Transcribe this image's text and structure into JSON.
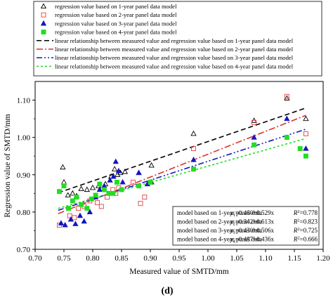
{
  "chart_data": {
    "type": "scatter",
    "xlabel": "Measured value of SMTD/mm",
    "ylabel": "Regression value of SMTD/mm",
    "xlim": [
      0.7,
      1.2
    ],
    "ylim": [
      0.7,
      1.15
    ],
    "xticks": [
      "0.70",
      "0.75",
      "0.80",
      "0.85",
      "0.90",
      "0.95",
      "1.00",
      "1.05",
      "1.10",
      "1.15",
      "1.20"
    ],
    "yticks": [
      "0.70",
      "0.80",
      "0.90",
      "1.00",
      "1.10"
    ],
    "grid": false,
    "legend_position": "top",
    "panel_label": "(d)",
    "series": [
      {
        "name": "regression value based on 1-year panel data model",
        "marker": "open-triangle",
        "color": "#000000",
        "points": [
          [
            0.748,
            0.92
          ],
          [
            0.75,
            0.88
          ],
          [
            0.757,
            0.845
          ],
          [
            0.765,
            0.85
          ],
          [
            0.772,
            0.843
          ],
          [
            0.78,
            0.862
          ],
          [
            0.79,
            0.86
          ],
          [
            0.8,
            0.865
          ],
          [
            0.81,
            0.87
          ],
          [
            0.822,
            0.875
          ],
          [
            0.832,
            0.895
          ],
          [
            0.838,
            0.915
          ],
          [
            0.843,
            0.9
          ],
          [
            0.848,
            0.905
          ],
          [
            0.856,
            0.908
          ],
          [
            0.88,
            0.905
          ],
          [
            0.902,
            0.925
          ],
          [
            0.975,
            1.01
          ],
          [
            1.08,
            1.045
          ],
          [
            1.137,
            1.105
          ],
          [
            1.17,
            1.05
          ]
        ]
      },
      {
        "name": "regression value based on 2-year panel data model",
        "marker": "open-square",
        "color": "#e04040",
        "points": [
          [
            0.742,
            0.765
          ],
          [
            0.76,
            0.79
          ],
          [
            0.768,
            0.785
          ],
          [
            0.775,
            0.81
          ],
          [
            0.785,
            0.815
          ],
          [
            0.795,
            0.83
          ],
          [
            0.808,
            0.825
          ],
          [
            0.815,
            0.815
          ],
          [
            0.825,
            0.84
          ],
          [
            0.835,
            0.86
          ],
          [
            0.84,
            0.85
          ],
          [
            0.845,
            0.865
          ],
          [
            0.87,
            0.88
          ],
          [
            0.883,
            0.823
          ],
          [
            0.89,
            0.84
          ],
          [
            0.9,
            0.88
          ],
          [
            0.975,
            0.97
          ],
          [
            1.08,
            1.04
          ],
          [
            1.137,
            1.11
          ],
          [
            1.17,
            1.01
          ]
        ]
      },
      {
        "name": "regression value based on 3-year panel data model",
        "marker": "filled-triangle",
        "color": "#1515c0",
        "points": [
          [
            0.745,
            0.77
          ],
          [
            0.752,
            0.765
          ],
          [
            0.762,
            0.78
          ],
          [
            0.77,
            0.768
          ],
          [
            0.778,
            0.79
          ],
          [
            0.785,
            0.775
          ],
          [
            0.795,
            0.8
          ],
          [
            0.805,
            0.84
          ],
          [
            0.812,
            0.86
          ],
          [
            0.82,
            0.87
          ],
          [
            0.83,
            0.885
          ],
          [
            0.836,
            0.895
          ],
          [
            0.84,
            0.935
          ],
          [
            0.845,
            0.91
          ],
          [
            0.852,
            0.88
          ],
          [
            0.88,
            0.905
          ],
          [
            0.895,
            0.875
          ],
          [
            0.902,
            0.88
          ],
          [
            0.975,
            0.94
          ],
          [
            1.08,
            1.0
          ],
          [
            1.137,
            1.05
          ],
          [
            1.17,
            0.97
          ]
        ]
      },
      {
        "name": "regression value based on 4-year panel data model",
        "marker": "filled-square",
        "color": "#22dd22",
        "points": [
          [
            0.742,
            0.855
          ],
          [
            0.75,
            0.87
          ],
          [
            0.758,
            0.81
          ],
          [
            0.765,
            0.83
          ],
          [
            0.772,
            0.84
          ],
          [
            0.78,
            0.82
          ],
          [
            0.79,
            0.81
          ],
          [
            0.798,
            0.835
          ],
          [
            0.805,
            0.845
          ],
          [
            0.812,
            0.875
          ],
          [
            0.82,
            0.86
          ],
          [
            0.828,
            0.85
          ],
          [
            0.835,
            0.85
          ],
          [
            0.842,
            0.88
          ],
          [
            0.85,
            0.86
          ],
          [
            0.88,
            0.87
          ],
          [
            0.9,
            0.88
          ],
          [
            0.975,
            0.915
          ],
          [
            1.08,
            0.98
          ],
          [
            1.137,
            1.0
          ],
          [
            1.16,
            0.97
          ],
          [
            1.17,
            0.95
          ]
        ]
      }
    ],
    "lines": [
      {
        "name": "linear relationship between measured value and regression value based on 1-year panel data model",
        "intercept": 0.46,
        "slope": 0.529,
        "x_range": [
          0.74,
          1.17
        ],
        "color": "#000000",
        "dash": "7,4"
      },
      {
        "name": "linear relationship between measured value and regression value based on 2-year panel data model",
        "intercept": 0.342,
        "slope": 0.613,
        "x_range": [
          0.74,
          1.17
        ],
        "color": "#e03030",
        "dash": "9,3,2,3"
      },
      {
        "name": "linear relationship between measured value and regression value based on 3-year panel data model",
        "intercept": 0.43,
        "slope": 0.506,
        "x_range": [
          0.74,
          1.17
        ],
        "color": "#1515c0",
        "dash": "8,3,2,3,2,3"
      },
      {
        "name": "linear relationship between measured value and regression value based on 4-year panel data model",
        "intercept": 0.487,
        "slope": 0.436,
        "x_range": [
          0.74,
          1.17
        ],
        "color": "#22dd22",
        "dash": "3,3"
      }
    ],
    "model_box": [
      {
        "label": "model based on 1-year panel data",
        "equation_y": "y",
        "equation_sub": "1",
        "equation_rhs": "=0.460+0.529x",
        "r2_label": "R",
        "r2_sup": "2",
        "r2_value": "=0.778"
      },
      {
        "label": "model based on 2-year panel data",
        "equation_y": "y",
        "equation_sub": "2",
        "equation_rhs": "=0.342+0.613x",
        "r2_label": "R",
        "r2_sup": "2",
        "r2_value": "=0.823"
      },
      {
        "label": "model based on 3-year panel data",
        "equation_y": "y",
        "equation_sub": "3",
        "equation_rhs": "=0.430+0.506x",
        "r2_label": "R",
        "r2_sup": "2",
        "r2_value": "=0.725"
      },
      {
        "label": "model based on 4-year panel data",
        "equation_y": "y",
        "equation_sub": "4",
        "equation_rhs": "=0.487+0.436x",
        "r2_label": "R",
        "r2_sup": "2",
        "r2_value": "=0.666"
      }
    ]
  }
}
